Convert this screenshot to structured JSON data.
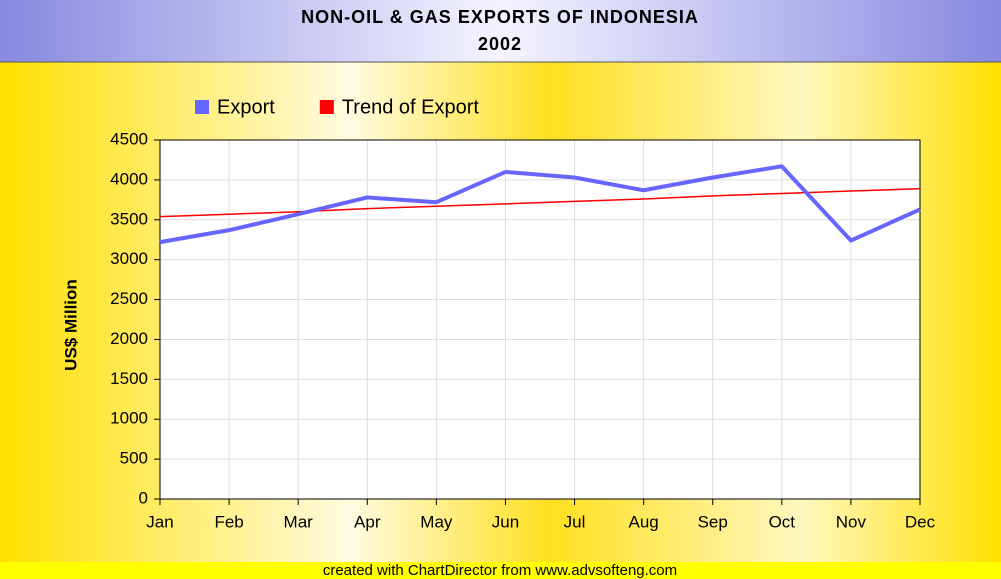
{
  "chart_data": {
    "type": "line",
    "title": "NON-OIL & GAS EXPORTS OF INDONESIA",
    "subtitle": "2002",
    "y_label": "US$ Million",
    "categories": [
      "Jan",
      "Feb",
      "Mar",
      "Apr",
      "May",
      "Jun",
      "Jul",
      "Aug",
      "Sep",
      "Oct",
      "Nov",
      "Dec"
    ],
    "series": [
      {
        "name": "Export",
        "color": "#6666ff",
        "values": [
          3220,
          3370,
          3570,
          3780,
          3720,
          4100,
          4030,
          3870,
          4030,
          4170,
          3240,
          3630
        ]
      },
      {
        "name": "Trend of Export",
        "color": "#ff0000",
        "values": [
          3540,
          3570,
          3600,
          3640,
          3670,
          3700,
          3730,
          3760,
          3800,
          3830,
          3860,
          3890
        ]
      }
    ],
    "ylim": [
      0,
      4500
    ],
    "yticks": [
      0,
      500,
      1000,
      1500,
      2000,
      2500,
      3000,
      3500,
      4000,
      4500
    ],
    "grid": true
  },
  "footer": "created with ChartDirector from www.advsofteng.com"
}
